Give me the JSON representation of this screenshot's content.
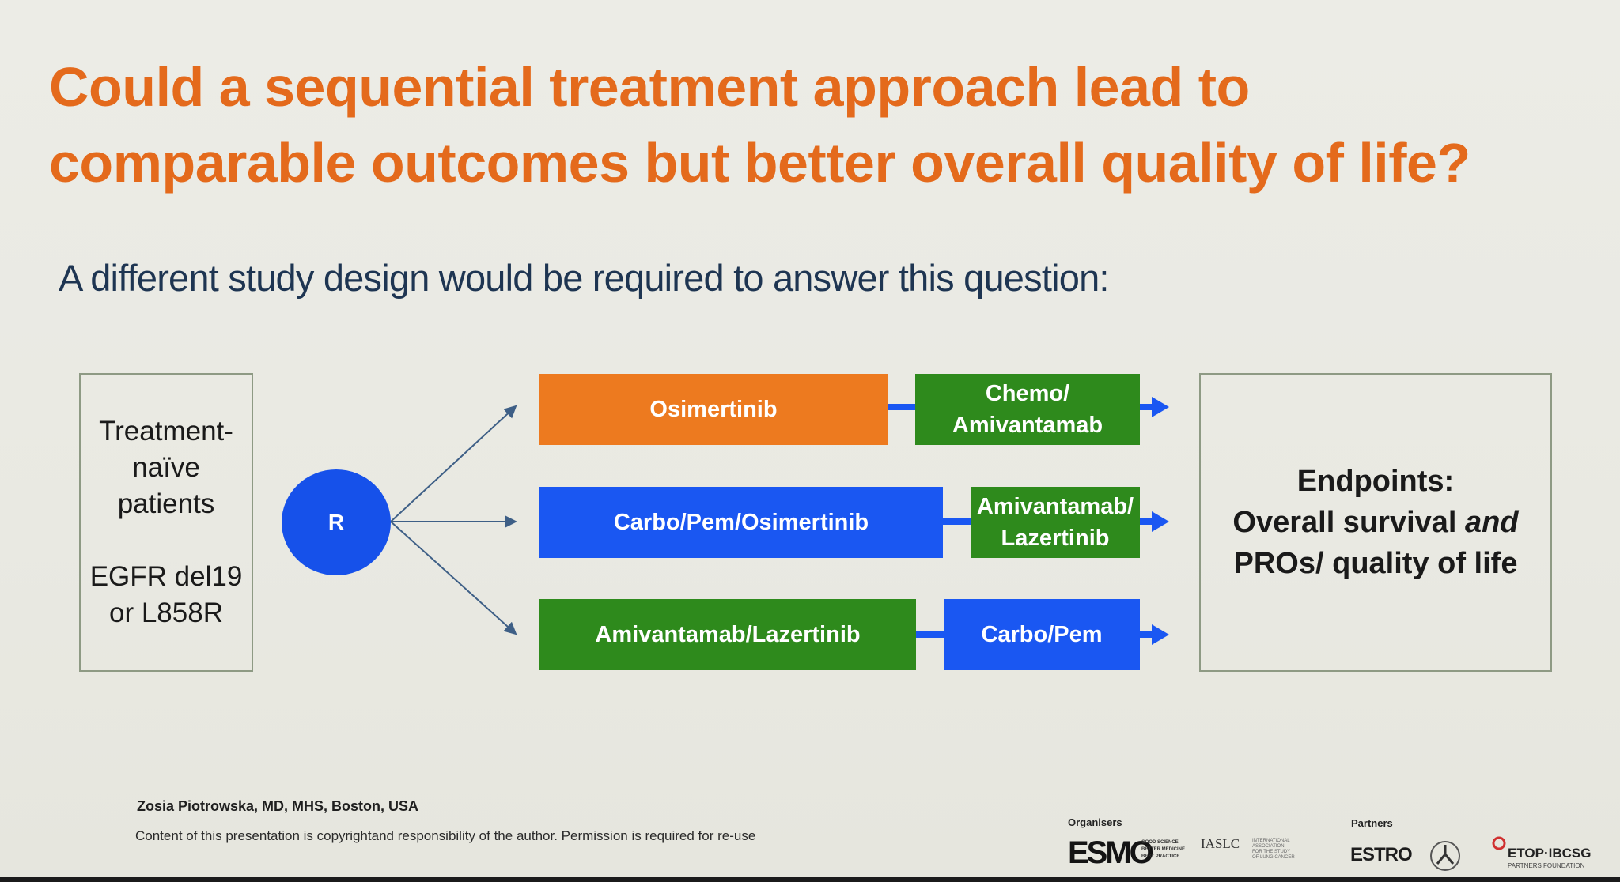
{
  "title_lines": [
    "Could a sequential treatment approach lead to",
    "comparable outcomes but better overall quality of life?"
  ],
  "subtitle": "A different study design would be required to answer this question:",
  "patients_box": {
    "line1": "Treatment-",
    "line2": "naïve",
    "line3": "patients",
    "line4": "EGFR del19",
    "line5": "or L858R"
  },
  "randomization_label": "R",
  "arms": [
    {
      "first_label": "Osimertinib",
      "first_color": "#ed7a1f",
      "second_line1": "Chemo/",
      "second_line2": "Amivantamab",
      "second_color": "#2e8a1c"
    },
    {
      "first_label": "Carbo/Pem/Osimertinib",
      "first_color": "#1a57f2",
      "second_line1": "Amivantamab/",
      "second_line2": "Lazertinib",
      "second_color": "#2e8a1c"
    },
    {
      "first_label": "Amivantamab/Lazertinib",
      "first_color": "#2e8a1c",
      "second_line1": "Carbo/Pem",
      "second_line2": "",
      "second_color": "#1a57f2"
    }
  ],
  "endpoints": {
    "heading": "Endpoints:",
    "line1_pre": "Overall survival ",
    "line1_em": "and",
    "line2": "PROs/ quality of life"
  },
  "footer": {
    "presenter": "Zosia Piotrowska, MD, MHS, Boston, USA",
    "copyright": "Content of this presentation is copyrightand responsibility of the author. Permission is required for re-use",
    "organisers_label": "Organisers",
    "partners_label": "Partners",
    "esmo_logo": "ESMO",
    "esmo_tagline": [
      "GOOD SCIENCE",
      "BETTER MEDICINE",
      "BEST PRACTICE"
    ],
    "iaslc_logo": "IASLC",
    "iaslc_tagline": [
      "INTERNATIONAL",
      "ASSOCIATION",
      "FOR THE STUDY",
      "OF LUNG CANCER"
    ],
    "estro_logo": "ESTRO",
    "etop_logo": "ETOP·IBCSG",
    "etop_tagline": "PARTNERS FOUNDATION"
  },
  "colors": {
    "title": "#e46a1c",
    "connector": "#1a57f2",
    "fan_line": "#3e5f86"
  }
}
